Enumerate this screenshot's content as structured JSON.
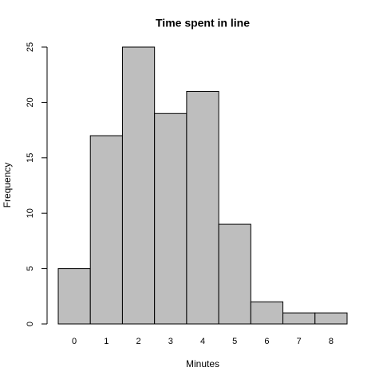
{
  "chart_data": {
    "type": "bar",
    "title": "Time spent in line",
    "x_label": "Minutes",
    "y_label": "Frequency",
    "categories": [
      "0",
      "1",
      "2",
      "3",
      "4",
      "5",
      "6",
      "7",
      "8"
    ],
    "values": [
      5,
      17,
      25,
      19,
      21,
      9,
      2,
      1,
      1
    ],
    "color": "#bebebe",
    "ylim": [
      0,
      25
    ],
    "yticks": [
      0,
      5,
      10,
      15,
      20,
      25
    ],
    "grid": false
  }
}
